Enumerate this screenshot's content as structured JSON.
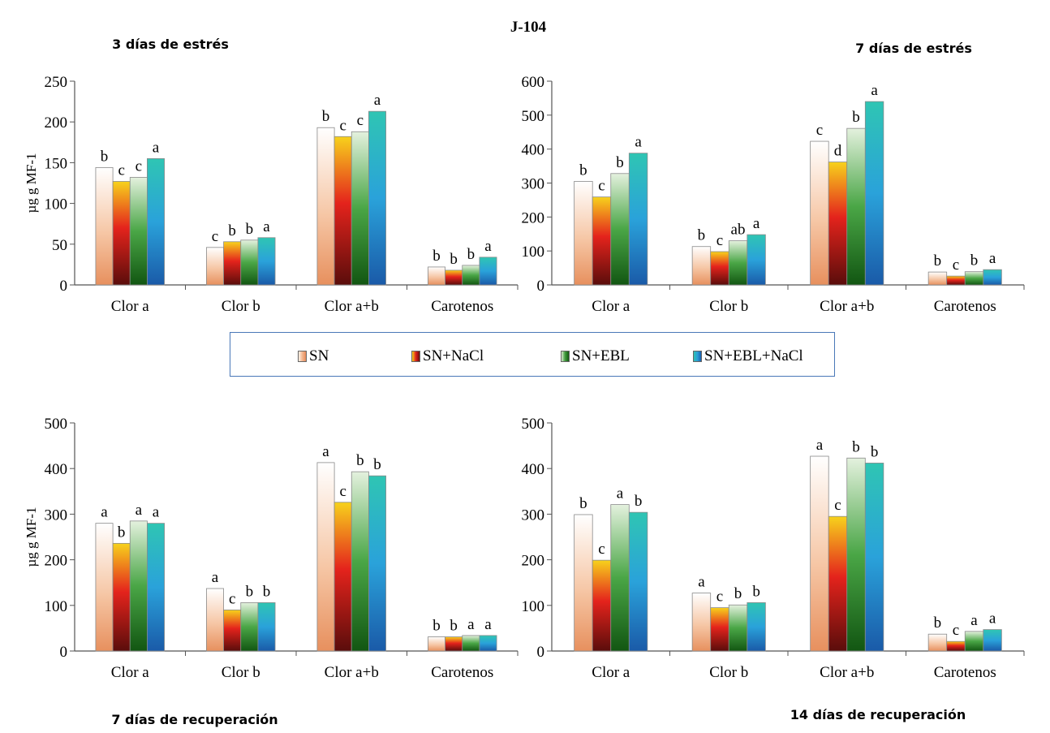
{
  "figure": {
    "title": "J-104"
  },
  "legend": {
    "items": [
      {
        "label": "SN",
        "color": "#f2b892"
      },
      {
        "label": "SN+NaCl",
        "color": "#e0211b"
      },
      {
        "label": "SN+EBL",
        "color": "#3e9a3a"
      },
      {
        "label": "SN+EBL+NaCl",
        "color": "#2a9fd8"
      }
    ]
  },
  "chart_data": [
    {
      "type": "bar",
      "title": "3 días de estrés",
      "ylabel": "µg g MF-1",
      "ylim": [
        0,
        250
      ],
      "yticks": [
        0,
        50,
        100,
        150,
        200,
        250
      ],
      "categories": [
        "Clor a",
        "Clor b",
        "Clor a+b",
        "Carotenos"
      ],
      "series": [
        {
          "name": "SN",
          "values": [
            144,
            46,
            193,
            22
          ],
          "letters": [
            "b",
            "c",
            "b",
            "b"
          ]
        },
        {
          "name": "SN+NaCl",
          "values": [
            127,
            53,
            182,
            18
          ],
          "letters": [
            "c",
            "b",
            "c",
            "b"
          ]
        },
        {
          "name": "SN+EBL",
          "values": [
            132,
            55,
            188,
            24
          ],
          "letters": [
            "c",
            "b",
            "c",
            "b"
          ]
        },
        {
          "name": "SN+EBL+NaCl",
          "values": [
            155,
            58,
            213,
            34
          ],
          "letters": [
            "a",
            "a",
            "a",
            "a"
          ]
        }
      ]
    },
    {
      "type": "bar",
      "title": "7 días de estrés",
      "ylabel": "",
      "ylim": [
        0,
        600
      ],
      "yticks": [
        0,
        100,
        200,
        300,
        400,
        500,
        600
      ],
      "categories": [
        "Clor a",
        "Clor b",
        "Clor a+b",
        "Carotenos"
      ],
      "series": [
        {
          "name": "SN",
          "values": [
            305,
            113,
            423,
            38
          ],
          "letters": [
            "b",
            "b",
            "c",
            "b"
          ]
        },
        {
          "name": "SN+NaCl",
          "values": [
            259,
            98,
            362,
            26
          ],
          "letters": [
            "c",
            "c",
            "d",
            "c"
          ]
        },
        {
          "name": "SN+EBL",
          "values": [
            328,
            130,
            461,
            39
          ],
          "letters": [
            "b",
            "ab",
            "b",
            "b"
          ]
        },
        {
          "name": "SN+EBL+NaCl",
          "values": [
            388,
            148,
            540,
            45
          ],
          "letters": [
            "a",
            "a",
            "a",
            "a"
          ]
        }
      ]
    },
    {
      "type": "bar",
      "title": "7 días de recuperación",
      "ylabel": "µg g MF-1",
      "ylim": [
        0,
        500
      ],
      "yticks": [
        0,
        100,
        200,
        300,
        400,
        500
      ],
      "categories": [
        "Clor a",
        "Clor b",
        "Clor a+b",
        "Carotenos"
      ],
      "series": [
        {
          "name": "SN",
          "values": [
            280,
            137,
            413,
            31
          ],
          "letters": [
            "a",
            "a",
            "a",
            "b"
          ]
        },
        {
          "name": "SN+NaCl",
          "values": [
            236,
            90,
            326,
            31
          ],
          "letters": [
            "b",
            "c",
            "c",
            "b"
          ]
        },
        {
          "name": "SN+EBL",
          "values": [
            285,
            106,
            393,
            34
          ],
          "letters": [
            "a",
            "b",
            "b",
            "a"
          ]
        },
        {
          "name": "SN+EBL+NaCl",
          "values": [
            280,
            106,
            384,
            34
          ],
          "letters": [
            "a",
            "b",
            "b",
            "a"
          ]
        }
      ]
    },
    {
      "type": "bar",
      "title": "14 días de recuperación",
      "ylabel": "",
      "ylim": [
        0,
        500
      ],
      "yticks": [
        0,
        100,
        200,
        300,
        400,
        500
      ],
      "categories": [
        "Clor a",
        "Clor b",
        "Clor a+b",
        "Carotenos"
      ],
      "series": [
        {
          "name": "SN",
          "values": [
            299,
            127,
            427,
            37
          ],
          "letters": [
            "b",
            "a",
            "a",
            "b"
          ]
        },
        {
          "name": "SN+NaCl",
          "values": [
            199,
            95,
            295,
            21
          ],
          "letters": [
            "c",
            "c",
            "c",
            "c"
          ]
        },
        {
          "name": "SN+EBL",
          "values": [
            321,
            101,
            423,
            43
          ],
          "letters": [
            "a",
            "b",
            "b",
            "a"
          ]
        },
        {
          "name": "SN+EBL+NaCl",
          "values": [
            304,
            106,
            412,
            47
          ],
          "letters": [
            "b",
            "b",
            "b",
            "a"
          ]
        }
      ]
    }
  ]
}
